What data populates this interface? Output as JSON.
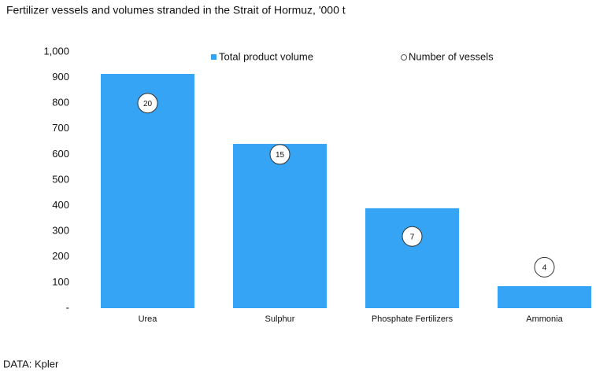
{
  "chart_data": {
    "type": "bar",
    "title": "Fertilizer vessels and volumes stranded in the Strait of Hormuz, '000 t",
    "categories": [
      "Urea",
      "Sulphur",
      "Phosphate Fertilizers",
      "Ammonia"
    ],
    "series": [
      {
        "name": "Total product volume",
        "color": "#35a4f4",
        "values": [
          914,
          641,
          390,
          86
        ]
      },
      {
        "name": "Number of vessels",
        "type": "scatter",
        "axis": "y2",
        "color": "#ffffff",
        "values": [
          20,
          15,
          7,
          4
        ]
      }
    ],
    "ylim": [
      0,
      1000
    ],
    "yticks": [
      {
        "value": 0,
        "label": "-"
      },
      100,
      200,
      300,
      400,
      500,
      600,
      700,
      800,
      900,
      {
        "value": 1000,
        "label": "1,000"
      }
    ],
    "y2lim": [
      0,
      25
    ],
    "source": "DATA: Kpler"
  }
}
